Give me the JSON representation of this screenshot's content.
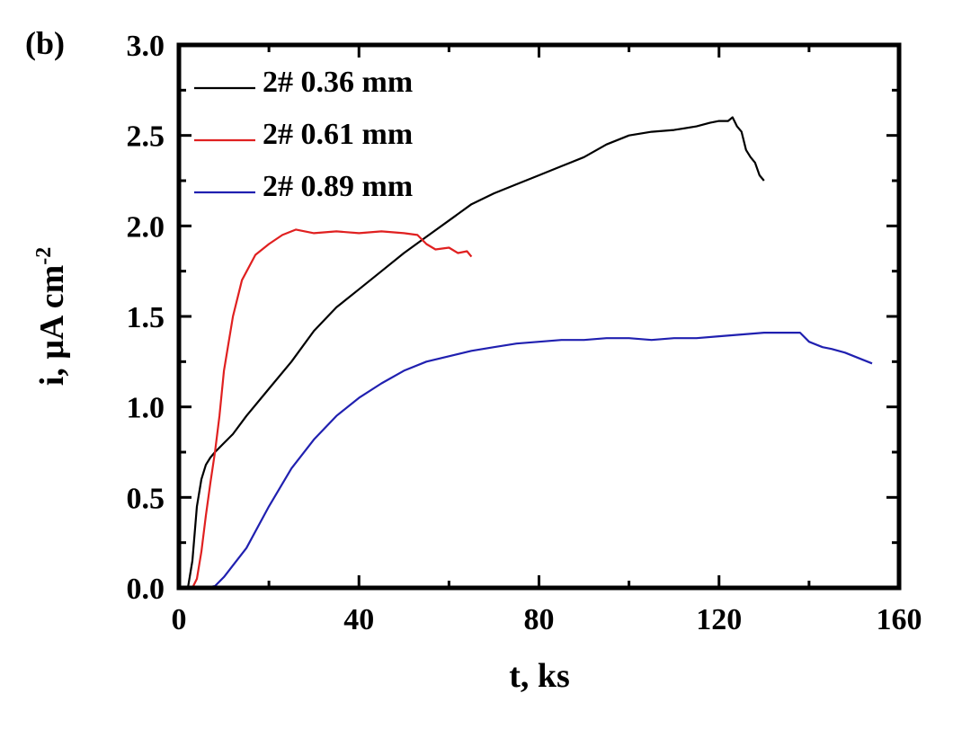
{
  "panel_label": "(b)",
  "chart_data": {
    "type": "line",
    "title": "",
    "xlabel": "t, ks",
    "ylabel_main": "i, μA cm",
    "ylabel_sup": "-2",
    "xlim": [
      0,
      160
    ],
    "ylim": [
      0,
      3.0
    ],
    "x_ticks": [
      "0",
      "40",
      "80",
      "120",
      "160"
    ],
    "y_ticks": [
      "0.0",
      "0.5",
      "1.0",
      "1.5",
      "2.0",
      "2.5",
      "3.0"
    ],
    "grid": false,
    "legend_position": "top-left",
    "series": [
      {
        "name": "2# 0.36 mm",
        "color": "#000000",
        "x": [
          0,
          2,
          3,
          4,
          5,
          6,
          7,
          8,
          10,
          12,
          15,
          20,
          25,
          30,
          35,
          40,
          45,
          50,
          55,
          60,
          65,
          70,
          75,
          80,
          85,
          90,
          95,
          100,
          105,
          110,
          115,
          118,
          120,
          122,
          123,
          124,
          125,
          126,
          127,
          128,
          129,
          130
        ],
        "y": [
          0,
          0,
          0.15,
          0.45,
          0.6,
          0.68,
          0.72,
          0.75,
          0.8,
          0.85,
          0.95,
          1.1,
          1.25,
          1.42,
          1.55,
          1.65,
          1.75,
          1.85,
          1.94,
          2.03,
          2.12,
          2.18,
          2.23,
          2.28,
          2.33,
          2.38,
          2.45,
          2.5,
          2.52,
          2.53,
          2.55,
          2.57,
          2.58,
          2.58,
          2.6,
          2.55,
          2.52,
          2.42,
          2.38,
          2.35,
          2.28,
          2.25
        ]
      },
      {
        "name": "2# 0.61 mm",
        "color": "#e02020",
        "x": [
          0,
          3,
          4,
          5,
          6,
          7,
          8,
          9,
          10,
          12,
          14,
          17,
          20,
          23,
          26,
          28,
          30,
          35,
          40,
          45,
          50,
          53,
          55,
          57,
          60,
          62,
          64,
          65
        ],
        "y": [
          0,
          0,
          0.05,
          0.2,
          0.4,
          0.58,
          0.75,
          0.95,
          1.2,
          1.5,
          1.7,
          1.84,
          1.9,
          1.95,
          1.98,
          1.97,
          1.96,
          1.97,
          1.96,
          1.97,
          1.96,
          1.95,
          1.9,
          1.87,
          1.88,
          1.85,
          1.86,
          1.83
        ]
      },
      {
        "name": "2# 0.89 mm",
        "color": "#2020b0",
        "x": [
          0,
          6,
          8,
          10,
          15,
          20,
          25,
          30,
          35,
          40,
          45,
          50,
          55,
          60,
          65,
          70,
          75,
          80,
          85,
          90,
          95,
          100,
          105,
          110,
          115,
          120,
          125,
          130,
          135,
          138,
          140,
          143,
          145,
          148,
          150,
          152,
          154
        ],
        "y": [
          0,
          0,
          0.01,
          0.06,
          0.22,
          0.45,
          0.66,
          0.82,
          0.95,
          1.05,
          1.13,
          1.2,
          1.25,
          1.28,
          1.31,
          1.33,
          1.35,
          1.36,
          1.37,
          1.37,
          1.38,
          1.38,
          1.37,
          1.38,
          1.38,
          1.39,
          1.4,
          1.41,
          1.41,
          1.41,
          1.36,
          1.33,
          1.32,
          1.3,
          1.28,
          1.26,
          1.24
        ]
      }
    ]
  }
}
